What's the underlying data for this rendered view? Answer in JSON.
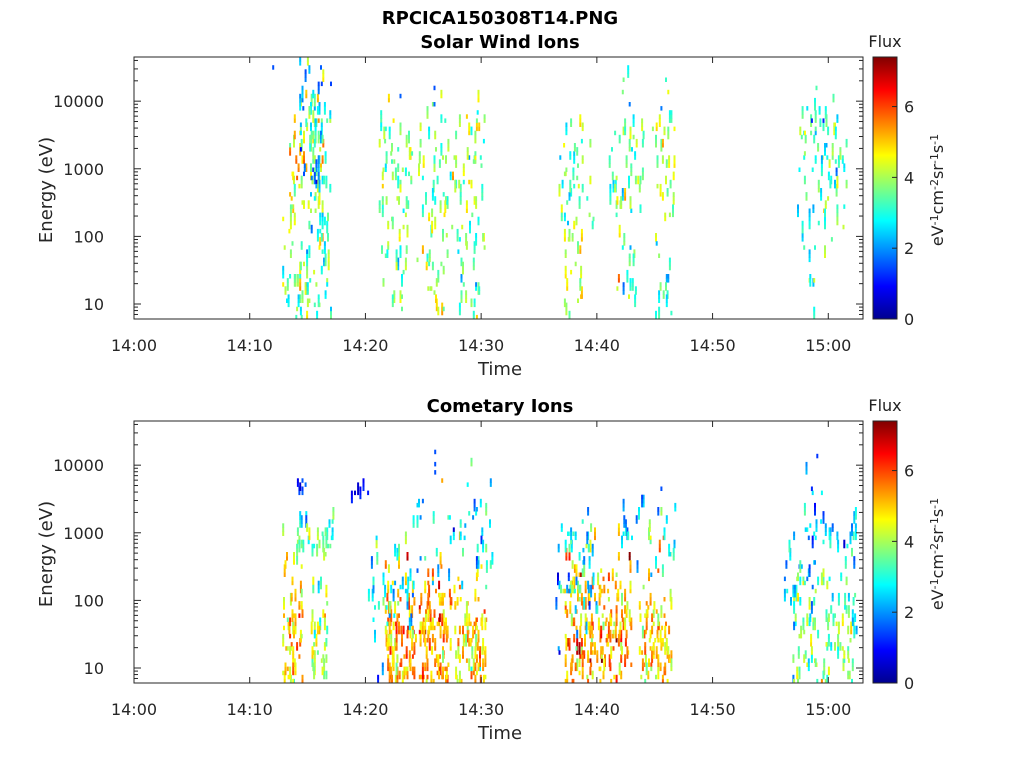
{
  "figure": {
    "title": "RPCICA150308T14.PNG"
  },
  "colorbar": {
    "label": "Flux",
    "unit_parts": [
      "eV",
      "-1",
      "cm",
      "-2",
      "sr",
      "-1",
      "s",
      "-1"
    ],
    "ticks": [
      "0",
      "2",
      "4",
      "6"
    ],
    "range": [
      0,
      7.4
    ],
    "colormap": "jet"
  },
  "chart_data": [
    {
      "type": "heatmap",
      "title": "Solar Wind Ions",
      "xlabel": "Time",
      "ylabel": "Energy (eV)",
      "x_ticks": [
        "14:00",
        "14:10",
        "14:20",
        "14:30",
        "14:40",
        "14:50",
        "15:00"
      ],
      "x_range": [
        "14:00",
        "15:03"
      ],
      "y_scale": "log",
      "y_ticks": [
        "10",
        "100",
        "1000",
        "10000"
      ],
      "y_range": [
        6,
        45000
      ],
      "clusters": [
        {
          "t": 14.0,
          "w": 1.2,
          "e": 25,
          "s": 0.6,
          "v": 4.0,
          "n": 35
        },
        {
          "t": 14.5,
          "w": 0.4,
          "e": 15,
          "s": 0.4,
          "v": 3.2,
          "n": 12
        },
        {
          "t": 14.9,
          "w": 1.5,
          "e": 900,
          "s": 0.5,
          "v": 4.5,
          "n": 70
        },
        {
          "t": 15.3,
          "w": 1.0,
          "e": 2500,
          "s": 0.8,
          "v": 2.3,
          "n": 30
        },
        {
          "t": 15.5,
          "w": 1.2,
          "e": 40,
          "s": 0.6,
          "v": 3.0,
          "n": 18
        },
        {
          "t": 16.1,
          "w": 1.0,
          "e": 1800,
          "s": 0.5,
          "v": 3.4,
          "n": 30
        },
        {
          "t": 16.3,
          "w": 0.7,
          "e": 25,
          "s": 0.6,
          "v": 3.0,
          "n": 20
        },
        {
          "t": 22.5,
          "w": 1.5,
          "e": 900,
          "s": 0.5,
          "v": 3.8,
          "n": 50
        },
        {
          "t": 22.5,
          "w": 1.2,
          "e": 25,
          "s": 0.5,
          "v": 3.6,
          "n": 25
        },
        {
          "t": 25.8,
          "w": 1.4,
          "e": 1000,
          "s": 0.6,
          "v": 3.8,
          "n": 40
        },
        {
          "t": 25.8,
          "w": 1.0,
          "e": 25,
          "s": 0.5,
          "v": 4.2,
          "n": 25
        },
        {
          "t": 28.8,
          "w": 1.5,
          "e": 1000,
          "s": 0.6,
          "v": 4.0,
          "n": 50
        },
        {
          "t": 28.8,
          "w": 1.0,
          "e": 20,
          "s": 0.5,
          "v": 3.5,
          "n": 22
        },
        {
          "t": 38.2,
          "w": 1.5,
          "e": 1000,
          "s": 0.5,
          "v": 3.5,
          "n": 40
        },
        {
          "t": 38.0,
          "w": 0.9,
          "e": 25,
          "s": 0.6,
          "v": 4.6,
          "n": 25
        },
        {
          "t": 42.5,
          "w": 1.5,
          "e": 1000,
          "s": 0.6,
          "v": 3.7,
          "n": 45
        },
        {
          "t": 42.5,
          "w": 0.8,
          "e": 35,
          "s": 0.6,
          "v": 3.6,
          "n": 20
        },
        {
          "t": 45.8,
          "w": 1.0,
          "e": 1000,
          "s": 0.6,
          "v": 4.0,
          "n": 30
        },
        {
          "t": 45.8,
          "w": 0.8,
          "e": 20,
          "s": 0.4,
          "v": 3.4,
          "n": 14
        },
        {
          "t": 59.0,
          "w": 1.8,
          "e": 1200,
          "s": 0.6,
          "v": 3.4,
          "n": 50
        },
        {
          "t": 60.6,
          "w": 1.0,
          "e": 800,
          "s": 0.5,
          "v": 3.2,
          "n": 25
        },
        {
          "t": 58.5,
          "w": 1.2,
          "e": 40,
          "s": 0.5,
          "v": 3.0,
          "n": 15
        }
      ],
      "points": [
        {
          "t": 16.2,
          "e": 18000,
          "v": 1.4
        },
        {
          "t": 17.0,
          "e": 18000,
          "v": 1.4
        },
        {
          "t": 16.1,
          "e": 31000,
          "v": 1.6
        },
        {
          "t": 23.0,
          "e": 12000,
          "v": 1.6
        },
        {
          "t": 25.9,
          "e": 15000,
          "v": 1.5
        },
        {
          "t": 25.9,
          "e": 9000,
          "v": 1.7
        },
        {
          "t": 42.8,
          "e": 8500,
          "v": 1.8
        },
        {
          "t": 45.5,
          "e": 7500,
          "v": 1.8
        },
        {
          "t": 58.5,
          "e": 5000,
          "v": 1.2
        },
        {
          "t": 59.5,
          "e": 5000,
          "v": 1.2
        },
        {
          "t": 14.6,
          "e": 8000,
          "v": 1.6
        },
        {
          "t": 12.0,
          "e": 32000,
          "v": 1.5
        }
      ]
    },
    {
      "type": "heatmap",
      "title": "Cometary Ions",
      "xlabel": "Time",
      "ylabel": "Energy (eV)",
      "x_ticks": [
        "14:00",
        "14:10",
        "14:20",
        "14:30",
        "14:40",
        "14:50",
        "15:00"
      ],
      "x_range": [
        "14:00",
        "15:03"
      ],
      "y_scale": "log",
      "y_ticks": [
        "10",
        "100",
        "1000",
        "10000"
      ],
      "y_range": [
        6,
        45000
      ],
      "clusters": [
        {
          "t": 13.7,
          "w": 0.9,
          "e": 20,
          "s": 0.6,
          "v": 5.0,
          "n": 80
        },
        {
          "t": 14.6,
          "w": 0.6,
          "e": 1000,
          "s": 0.2,
          "v": 3.3,
          "n": 18
        },
        {
          "t": 14.5,
          "w": 0.5,
          "e": 4800,
          "s": 0.1,
          "v": 1.3,
          "n": 6
        },
        {
          "t": 16.3,
          "w": 1.0,
          "e": 800,
          "s": 0.2,
          "v": 3.3,
          "n": 20
        },
        {
          "t": 16.0,
          "w": 0.7,
          "e": 25,
          "s": 0.6,
          "v": 4.2,
          "n": 45
        },
        {
          "t": 19.5,
          "w": 0.8,
          "e": 4500,
          "s": 0.1,
          "v": 1.3,
          "n": 6
        },
        {
          "t": 23.0,
          "w": 1.3,
          "e": 20,
          "s": 0.6,
          "v": 5.3,
          "n": 120
        },
        {
          "t": 22.2,
          "w": 2.0,
          "e": 120,
          "s": 0.4,
          "v": 2.8,
          "n": 45
        },
        {
          "t": 26.0,
          "w": 1.4,
          "e": 25,
          "s": 0.6,
          "v": 5.4,
          "n": 120
        },
        {
          "t": 26.0,
          "w": 1.6,
          "e": 900,
          "s": 0.3,
          "v": 2.6,
          "n": 18
        },
        {
          "t": 29.0,
          "w": 1.4,
          "e": 20,
          "s": 0.6,
          "v": 5.0,
          "n": 110
        },
        {
          "t": 29.5,
          "w": 1.6,
          "e": 800,
          "s": 0.4,
          "v": 3.0,
          "n": 30
        },
        {
          "t": 38.5,
          "w": 1.3,
          "e": 25,
          "s": 0.6,
          "v": 5.5,
          "n": 110
        },
        {
          "t": 38.2,
          "w": 1.8,
          "e": 150,
          "s": 0.4,
          "v": 2.6,
          "n": 40
        },
        {
          "t": 38.5,
          "w": 1.2,
          "e": 900,
          "s": 0.2,
          "v": 2.8,
          "n": 15
        },
        {
          "t": 41.5,
          "w": 1.5,
          "e": 25,
          "s": 0.6,
          "v": 5.3,
          "n": 110
        },
        {
          "t": 42.5,
          "w": 1.5,
          "e": 800,
          "s": 0.3,
          "v": 2.6,
          "n": 15
        },
        {
          "t": 45.0,
          "w": 1.4,
          "e": 25,
          "s": 0.6,
          "v": 5.0,
          "n": 100
        },
        {
          "t": 45.5,
          "w": 1.2,
          "e": 900,
          "s": 0.3,
          "v": 2.8,
          "n": 15
        },
        {
          "t": 58.5,
          "w": 1.6,
          "e": 30,
          "s": 0.6,
          "v": 3.8,
          "n": 70
        },
        {
          "t": 57.5,
          "w": 1.3,
          "e": 180,
          "s": 0.3,
          "v": 2.5,
          "n": 25
        },
        {
          "t": 61.0,
          "w": 1.4,
          "e": 35,
          "s": 0.5,
          "v": 3.6,
          "n": 55
        },
        {
          "t": 59.5,
          "w": 1.6,
          "e": 1000,
          "s": 0.3,
          "v": 2.3,
          "n": 22
        },
        {
          "t": 61.8,
          "w": 0.6,
          "e": 900,
          "s": 0.3,
          "v": 2.4,
          "n": 12
        }
      ],
      "points": [
        {
          "t": 26.0,
          "e": 15000,
          "v": 1.5
        },
        {
          "t": 26.0,
          "e": 8000,
          "v": 1.5
        },
        {
          "t": 26.0,
          "e": 10000,
          "v": 1.5
        },
        {
          "t": 45.5,
          "e": 4500,
          "v": 1.5
        },
        {
          "t": 58.5,
          "e": 4500,
          "v": 1.2
        },
        {
          "t": 59.0,
          "e": 13000,
          "v": 1.3
        },
        {
          "t": 14.5,
          "e": 4800,
          "v": 1.3
        }
      ]
    }
  ]
}
